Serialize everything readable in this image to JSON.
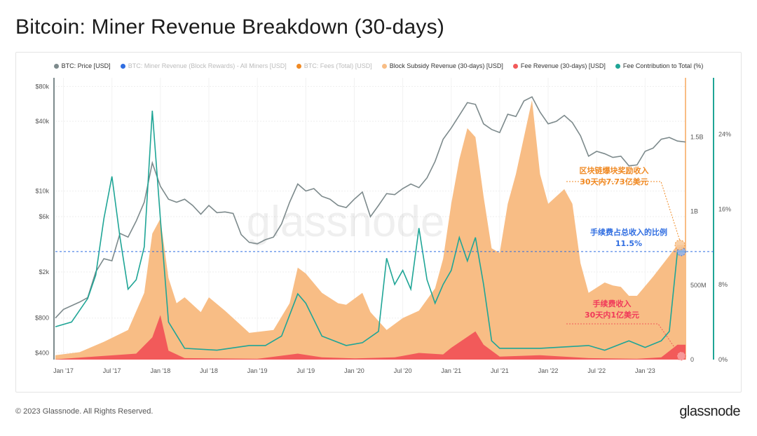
{
  "title": "Bitcoin: Miner Revenue Breakdown (30-days)",
  "footer": "© 2023 Glassnode. All Rights Reserved.",
  "brand": "glassnode",
  "watermark": "glassnode",
  "legend": [
    {
      "label": "BTC: Price [USD]",
      "color": "#7d8a8c",
      "muted": false
    },
    {
      "label": "BTC: Miner Revenue (Block Rewards) - All Miners [USD]",
      "color": "#2f6de1",
      "muted": true
    },
    {
      "label": "BTC: Fees (Total) [USD]",
      "color": "#f08a24",
      "muted": true
    },
    {
      "label": "Block Subsidy Revenue (30-days) [USD]",
      "color": "#f8bd85",
      "muted": false
    },
    {
      "label": "Fee Revenue (30-days) [USD]",
      "color": "#f25a5a",
      "muted": false
    },
    {
      "label": "Fee Contribution to Total (%)",
      "color": "#1fa596",
      "muted": false
    }
  ],
  "annotations": {
    "subsidy_line1": "区块链爆块奖励收入",
    "subsidy_line2": "30天内7.73亿美元",
    "share_line1": "手续费占总收入的比例",
    "share_line2": "11.5%",
    "fee_line1": "手续费收入",
    "fee_line2": "30天内1亿美元"
  },
  "chart_data": {
    "type": "area",
    "x_ticks": [
      "Jan '17",
      "Jul '17",
      "Jan '18",
      "Jul '18",
      "Jan '19",
      "Jul '19",
      "Jan '20",
      "Jul '20",
      "Jan '21",
      "Jul '21",
      "Jan '22",
      "Jul '22",
      "Jan '23"
    ],
    "x_range": [
      "2016-12",
      "2023-06"
    ],
    "y_left": {
      "label": "",
      "scale": "log",
      "ticks": [
        "$80k",
        "$40k",
        "$10k",
        "$6k",
        "$2k",
        "$800",
        "$400"
      ],
      "tick_values": [
        80000,
        40000,
        10000,
        6000,
        2000,
        800,
        400
      ]
    },
    "y_right_1": {
      "label": "",
      "scale": "linear",
      "ticks": [
        "1.5B",
        "1B",
        "500M",
        "0"
      ],
      "tick_values": [
        1500000000,
        1000000000,
        500000000,
        0
      ],
      "range": [
        0,
        1900000000
      ]
    },
    "y_right_2": {
      "label": "",
      "scale": "linear",
      "ticks": [
        "24%",
        "16%",
        "8%",
        "0%"
      ],
      "tick_values": [
        24,
        16,
        8,
        0
      ],
      "range": [
        0,
        30
      ]
    },
    "series": [
      {
        "name": "BTC: Price [USD]",
        "axis": "left",
        "color": "#7d8a8c",
        "points": [
          [
            "2016-12",
            800
          ],
          [
            "2017-01",
            950
          ],
          [
            "2017-03",
            1100
          ],
          [
            "2017-04",
            1200
          ],
          [
            "2017-05",
            2000
          ],
          [
            "2017-06",
            2600
          ],
          [
            "2017-07",
            2500
          ],
          [
            "2017-08",
            4300
          ],
          [
            "2017-09",
            4000
          ],
          [
            "2017-10",
            5500
          ],
          [
            "2017-11",
            8000
          ],
          [
            "2017-12",
            17500
          ],
          [
            "2018-01",
            11000
          ],
          [
            "2018-02",
            8500
          ],
          [
            "2018-03",
            8000
          ],
          [
            "2018-04",
            8500
          ],
          [
            "2018-05",
            7500
          ],
          [
            "2018-06",
            6300
          ],
          [
            "2018-07",
            7500
          ],
          [
            "2018-08",
            6500
          ],
          [
            "2018-09",
            6600
          ],
          [
            "2018-10",
            6400
          ],
          [
            "2018-11",
            4200
          ],
          [
            "2018-12",
            3600
          ],
          [
            "2019-01",
            3500
          ],
          [
            "2019-02",
            3800
          ],
          [
            "2019-03",
            4000
          ],
          [
            "2019-04",
            5200
          ],
          [
            "2019-05",
            8000
          ],
          [
            "2019-06",
            11500
          ],
          [
            "2019-07",
            10000
          ],
          [
            "2019-08",
            10500
          ],
          [
            "2019-09",
            9000
          ],
          [
            "2019-10",
            8500
          ],
          [
            "2019-11",
            7500
          ],
          [
            "2019-12",
            7200
          ],
          [
            "2020-01",
            8500
          ],
          [
            "2020-02",
            9800
          ],
          [
            "2020-03",
            6000
          ],
          [
            "2020-04",
            7500
          ],
          [
            "2020-05",
            9500
          ],
          [
            "2020-06",
            9300
          ],
          [
            "2020-07",
            10500
          ],
          [
            "2020-08",
            11500
          ],
          [
            "2020-09",
            10700
          ],
          [
            "2020-10",
            13000
          ],
          [
            "2020-11",
            18000
          ],
          [
            "2020-12",
            28000
          ],
          [
            "2021-01",
            35000
          ],
          [
            "2021-02",
            45000
          ],
          [
            "2021-03",
            58000
          ],
          [
            "2021-04",
            56000
          ],
          [
            "2021-05",
            38000
          ],
          [
            "2021-06",
            34000
          ],
          [
            "2021-07",
            32000
          ],
          [
            "2021-08",
            46000
          ],
          [
            "2021-09",
            44000
          ],
          [
            "2021-10",
            60000
          ],
          [
            "2021-11",
            65000
          ],
          [
            "2021-12",
            48000
          ],
          [
            "2022-01",
            38000
          ],
          [
            "2022-02",
            40000
          ],
          [
            "2022-03",
            45000
          ],
          [
            "2022-04",
            39000
          ],
          [
            "2022-05",
            30000
          ],
          [
            "2022-06",
            20000
          ],
          [
            "2022-07",
            22000
          ],
          [
            "2022-08",
            21000
          ],
          [
            "2022-09",
            19500
          ],
          [
            "2022-10",
            20000
          ],
          [
            "2022-11",
            16500
          ],
          [
            "2022-12",
            16800
          ],
          [
            "2023-01",
            22000
          ],
          [
            "2023-02",
            23500
          ],
          [
            "2023-03",
            28000
          ],
          [
            "2023-04",
            29000
          ],
          [
            "2023-05",
            27000
          ],
          [
            "2023-06",
            26500
          ]
        ]
      },
      {
        "name": "Block Subsidy Revenue (30-days) [USD]",
        "axis": "right_1",
        "color": "#f8bd85",
        "points": [
          [
            "2016-12",
            30000000
          ],
          [
            "2017-03",
            50000000
          ],
          [
            "2017-06",
            120000000
          ],
          [
            "2017-09",
            200000000
          ],
          [
            "2017-11",
            450000000
          ],
          [
            "2017-12",
            850000000
          ],
          [
            "2018-01",
            950000000
          ],
          [
            "2018-02",
            550000000
          ],
          [
            "2018-03",
            380000000
          ],
          [
            "2018-04",
            420000000
          ],
          [
            "2018-06",
            320000000
          ],
          [
            "2018-07",
            420000000
          ],
          [
            "2018-09",
            330000000
          ],
          [
            "2018-11",
            230000000
          ],
          [
            "2018-12",
            180000000
          ],
          [
            "2019-03",
            200000000
          ],
          [
            "2019-05",
            380000000
          ],
          [
            "2019-06",
            620000000
          ],
          [
            "2019-07",
            580000000
          ],
          [
            "2019-09",
            450000000
          ],
          [
            "2019-11",
            380000000
          ],
          [
            "2019-12",
            370000000
          ],
          [
            "2020-02",
            450000000
          ],
          [
            "2020-03",
            320000000
          ],
          [
            "2020-05",
            200000000
          ],
          [
            "2020-07",
            280000000
          ],
          [
            "2020-09",
            330000000
          ],
          [
            "2020-11",
            480000000
          ],
          [
            "2020-12",
            680000000
          ],
          [
            "2021-01",
            1050000000
          ],
          [
            "2021-02",
            1350000000
          ],
          [
            "2021-03",
            1560000000
          ],
          [
            "2021-04",
            1500000000
          ],
          [
            "2021-05",
            1100000000
          ],
          [
            "2021-06",
            750000000
          ],
          [
            "2021-07",
            720000000
          ],
          [
            "2021-08",
            1050000000
          ],
          [
            "2021-09",
            1250000000
          ],
          [
            "2021-10",
            1500000000
          ],
          [
            "2021-11",
            1750000000
          ],
          [
            "2021-12",
            1250000000
          ],
          [
            "2022-01",
            1050000000
          ],
          [
            "2022-02",
            1100000000
          ],
          [
            "2022-03",
            1150000000
          ],
          [
            "2022-04",
            1050000000
          ],
          [
            "2022-05",
            650000000
          ],
          [
            "2022-06",
            450000000
          ],
          [
            "2022-08",
            520000000
          ],
          [
            "2022-09",
            500000000
          ],
          [
            "2022-10",
            490000000
          ],
          [
            "2022-11",
            430000000
          ],
          [
            "2022-12",
            430000000
          ],
          [
            "2023-02",
            560000000
          ],
          [
            "2023-04",
            700000000
          ],
          [
            "2023-05",
            773000000
          ],
          [
            "2023-06",
            773000000
          ]
        ]
      },
      {
        "name": "Fee Revenue (30-days) [USD]",
        "axis": "right_1",
        "color": "#f25a5a",
        "points": [
          [
            "2016-12",
            2000000
          ],
          [
            "2017-06",
            25000000
          ],
          [
            "2017-10",
            40000000
          ],
          [
            "2017-12",
            150000000
          ],
          [
            "2018-01",
            300000000
          ],
          [
            "2018-02",
            60000000
          ],
          [
            "2018-04",
            10000000
          ],
          [
            "2019-01",
            5000000
          ],
          [
            "2019-06",
            40000000
          ],
          [
            "2019-09",
            15000000
          ],
          [
            "2020-01",
            8000000
          ],
          [
            "2020-06",
            15000000
          ],
          [
            "2020-09",
            45000000
          ],
          [
            "2020-12",
            35000000
          ],
          [
            "2021-01",
            80000000
          ],
          [
            "2021-04",
            190000000
          ],
          [
            "2021-05",
            100000000
          ],
          [
            "2021-07",
            20000000
          ],
          [
            "2021-12",
            30000000
          ],
          [
            "2022-06",
            10000000
          ],
          [
            "2022-12",
            5000000
          ],
          [
            "2023-03",
            15000000
          ],
          [
            "2023-05",
            100000000
          ],
          [
            "2023-06",
            100000000
          ]
        ]
      },
      {
        "name": "Fee Contribution to Total (%)",
        "axis": "right_2",
        "color": "#1fa596",
        "points": [
          [
            "2016-12",
            3.5
          ],
          [
            "2017-02",
            4.0
          ],
          [
            "2017-04",
            6.5
          ],
          [
            "2017-05",
            9.0
          ],
          [
            "2017-06",
            15.0
          ],
          [
            "2017-07",
            19.5
          ],
          [
            "2017-08",
            13.0
          ],
          [
            "2017-09",
            7.5
          ],
          [
            "2017-10",
            8.5
          ],
          [
            "2017-11",
            12.0
          ],
          [
            "2017-12",
            26.5
          ],
          [
            "2018-01",
            15.0
          ],
          [
            "2018-02",
            4.0
          ],
          [
            "2018-04",
            1.2
          ],
          [
            "2018-08",
            1.0
          ],
          [
            "2018-12",
            1.5
          ],
          [
            "2019-02",
            1.5
          ],
          [
            "2019-04",
            2.5
          ],
          [
            "2019-06",
            7.0
          ],
          [
            "2019-07",
            6.0
          ],
          [
            "2019-09",
            2.5
          ],
          [
            "2019-12",
            1.5
          ],
          [
            "2020-02",
            1.8
          ],
          [
            "2020-04",
            3.0
          ],
          [
            "2020-05",
            10.8
          ],
          [
            "2020-06",
            8.0
          ],
          [
            "2020-07",
            9.5
          ],
          [
            "2020-08",
            7.5
          ],
          [
            "2020-09",
            14.0
          ],
          [
            "2020-10",
            8.5
          ],
          [
            "2020-11",
            6.0
          ],
          [
            "2020-12",
            8.0
          ],
          [
            "2021-01",
            9.5
          ],
          [
            "2021-02",
            13.0
          ],
          [
            "2021-03",
            10.5
          ],
          [
            "2021-04",
            13.0
          ],
          [
            "2021-05",
            8.0
          ],
          [
            "2021-06",
            2.0
          ],
          [
            "2021-07",
            1.2
          ],
          [
            "2021-12",
            1.2
          ],
          [
            "2022-06",
            1.5
          ],
          [
            "2022-08",
            1.0
          ],
          [
            "2022-11",
            2.0
          ],
          [
            "2023-01",
            1.3
          ],
          [
            "2023-03",
            2.0
          ],
          [
            "2023-04",
            3.0
          ],
          [
            "2023-05",
            11.5
          ],
          [
            "2023-06",
            11.5
          ]
        ]
      }
    ],
    "reference_line": {
      "axis": "right_2",
      "value": 11.5,
      "color": "#2f6de1",
      "style": "dashed"
    },
    "grid": true
  }
}
